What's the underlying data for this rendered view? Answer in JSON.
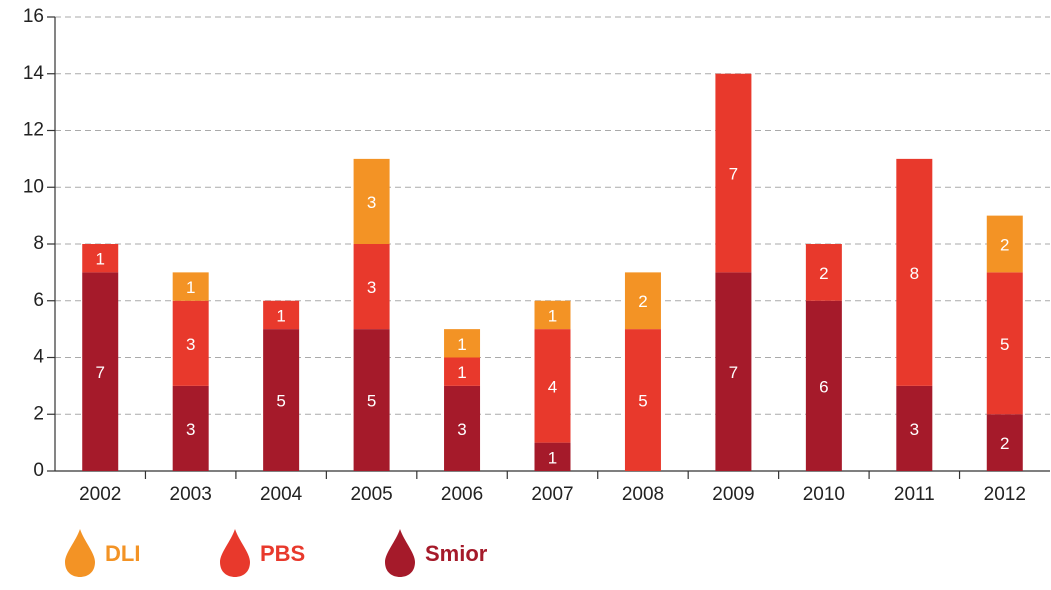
{
  "chart_data": {
    "type": "stacked_bar",
    "categories": [
      "2002",
      "2003",
      "2004",
      "2005",
      "2006",
      "2007",
      "2008",
      "2009",
      "2010",
      "2011",
      "2012"
    ],
    "series": [
      {
        "name": "Smior",
        "color": "#a51a2a",
        "values": [
          7,
          3,
          5,
          5,
          3,
          1,
          null,
          7,
          6,
          3,
          2
        ]
      },
      {
        "name": "PBS",
        "color": "#e8392c",
        "values": [
          1,
          3,
          1,
          3,
          1,
          4,
          5,
          7,
          2,
          8,
          5
        ]
      },
      {
        "name": "DLI",
        "color": "#f39325",
        "values": [
          null,
          1,
          null,
          3,
          1,
          1,
          2,
          null,
          null,
          null,
          2
        ]
      }
    ],
    "ylim": [
      0,
      16
    ],
    "yticks": [
      0,
      2,
      4,
      6,
      8,
      10,
      12,
      14,
      16
    ],
    "grid": true
  }
}
